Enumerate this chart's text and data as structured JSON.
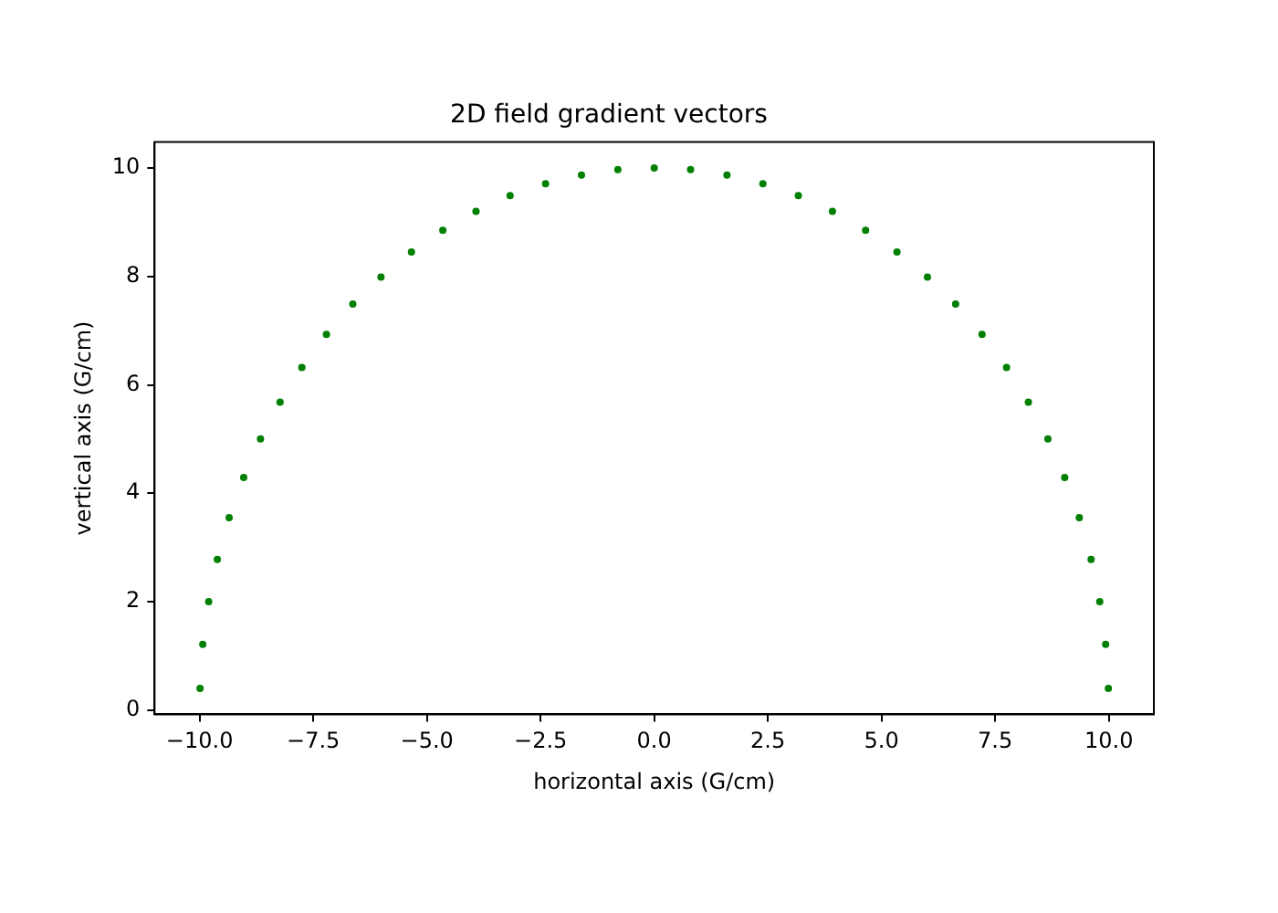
{
  "chart_data": {
    "type": "scatter",
    "title": "2D field gradient vectors",
    "xlabel": "horizontal axis (G/cm)",
    "ylabel": "vertical axis (G/cm)",
    "x": [
      -9.99,
      -9.93,
      -9.8,
      -9.61,
      -9.35,
      -9.03,
      -8.66,
      -8.23,
      -7.75,
      -7.21,
      -6.63,
      -6.01,
      -5.34,
      -4.65,
      -3.92,
      -3.17,
      -2.39,
      -1.6,
      -0.8,
      0,
      0.8,
      1.6,
      2.39,
      3.17,
      3.92,
      4.65,
      5.34,
      6.01,
      6.63,
      7.21,
      7.75,
      8.23,
      8.66,
      9.03,
      9.35,
      9.61,
      9.8,
      9.93,
      9.99
    ],
    "series": [
      {
        "color": "#008000",
        "values": [
          0.4,
          1.21,
          2.0,
          2.78,
          3.55,
          4.29,
          5.0,
          5.68,
          6.32,
          6.93,
          7.49,
          7.99,
          8.45,
          8.85,
          9.2,
          9.49,
          9.71,
          9.87,
          9.97,
          10,
          9.97,
          9.87,
          9.71,
          9.49,
          9.2,
          8.85,
          8.45,
          7.99,
          7.49,
          6.93,
          6.32,
          5.68,
          5.0,
          4.29,
          3.55,
          2.78,
          2.0,
          1.21,
          0.4
        ]
      }
    ],
    "xlim": [
      -10.99,
      10.99
    ],
    "xticks": [
      {
        "value": -10,
        "label": "−10.0"
      },
      {
        "value": -7.5,
        "label": "−7.5"
      },
      {
        "value": -5,
        "label": "−5.0"
      },
      {
        "value": -2.5,
        "label": "−2.5"
      },
      {
        "value": 0,
        "label": "0.0"
      },
      {
        "value": 2.5,
        "label": "2.5"
      },
      {
        "value": 5,
        "label": "5.0"
      },
      {
        "value": 7.5,
        "label": "7.5"
      },
      {
        "value": 10,
        "label": "10.0"
      }
    ],
    "ylim": [
      -0.08,
      10.48
    ],
    "yticks": [
      0,
      2,
      4,
      6,
      8,
      10
    ],
    "marker": "circle",
    "grid": false,
    "legend": false
  }
}
